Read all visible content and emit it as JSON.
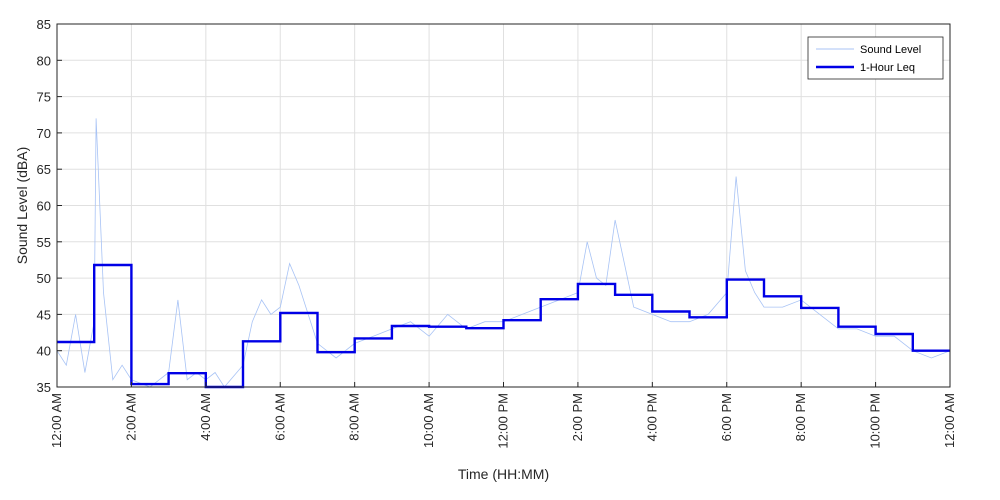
{
  "chart_data": {
    "type": "line",
    "title": "",
    "xlabel": "Time (HH:MM)",
    "ylabel": "Sound Level (dBA)",
    "xlim": [
      0,
      24
    ],
    "ylim": [
      35,
      85
    ],
    "grid": true,
    "legend_position": "top-right",
    "y_ticks": [
      "35",
      "40",
      "45",
      "50",
      "55",
      "60",
      "65",
      "70",
      "75",
      "80",
      "85"
    ],
    "x_ticks": [
      {
        "x": 0,
        "label": "12:00 AM"
      },
      {
        "x": 2,
        "label": "2:00 AM"
      },
      {
        "x": 4,
        "label": "4:00 AM"
      },
      {
        "x": 6,
        "label": "6:00 AM"
      },
      {
        "x": 8,
        "label": "8:00 AM"
      },
      {
        "x": 10,
        "label": "10:00 AM"
      },
      {
        "x": 12,
        "label": "12:00 PM"
      },
      {
        "x": 14,
        "label": "2:00 PM"
      },
      {
        "x": 16,
        "label": "4:00 PM"
      },
      {
        "x": 18,
        "label": "6:00 PM"
      },
      {
        "x": 20,
        "label": "8:00 PM"
      },
      {
        "x": 22,
        "label": "10:00 PM"
      },
      {
        "x": 24,
        "label": "12:00 AM"
      }
    ],
    "colors": {
      "sound_level": "#a8c3f5",
      "leq": "#0000e6",
      "grid": "#e0e0e0",
      "axis": "#262626"
    },
    "series": [
      {
        "name": "Sound Level",
        "style": "thin-line",
        "x": [
          0,
          0.25,
          0.5,
          0.75,
          1,
          1.05,
          1.25,
          1.5,
          1.75,
          2,
          2.5,
          3,
          3.25,
          3.5,
          3.75,
          4,
          4.25,
          4.5,
          5,
          5.25,
          5.5,
          5.75,
          6,
          6.25,
          6.5,
          6.75,
          7,
          7.5,
          8,
          8.5,
          9,
          9.5,
          10,
          10.5,
          11,
          11.5,
          12,
          12.5,
          13,
          13.5,
          14,
          14.25,
          14.5,
          14.75,
          15,
          15.5,
          16,
          16.5,
          17,
          17.5,
          18,
          18.25,
          18.5,
          18.75,
          19,
          19.5,
          20,
          20.5,
          21,
          21.5,
          22,
          22.5,
          23,
          23.5,
          24
        ],
        "values": [
          40,
          38,
          45,
          37,
          44,
          72,
          48,
          36,
          38,
          36,
          35,
          37,
          47,
          36,
          37,
          36,
          37,
          35,
          38,
          44,
          47,
          45,
          46,
          52,
          49,
          45,
          41,
          39,
          41,
          42,
          43,
          44,
          42,
          45,
          43,
          44,
          44,
          45,
          46,
          47,
          48,
          55,
          50,
          49,
          58,
          46,
          45,
          44,
          44,
          45,
          48,
          64,
          51,
          48,
          46,
          46,
          47,
          45,
          43,
          43,
          42,
          42,
          40,
          39,
          40
        ]
      },
      {
        "name": "1-Hour Leq",
        "style": "step",
        "x": [
          0,
          1,
          2,
          3,
          4,
          5,
          6,
          7,
          8,
          9,
          10,
          11,
          12,
          13,
          14,
          15,
          16,
          17,
          18,
          19,
          20,
          21,
          22,
          23
        ],
        "values": [
          41.2,
          51.8,
          35.4,
          36.9,
          34,
          41.3,
          45.2,
          39.8,
          41.7,
          43.4,
          43.3,
          43.1,
          44.2,
          47.1,
          49.2,
          47.7,
          45.4,
          44.6,
          49.8,
          47.5,
          45.9,
          43.3,
          42.3,
          40
        ]
      }
    ]
  }
}
